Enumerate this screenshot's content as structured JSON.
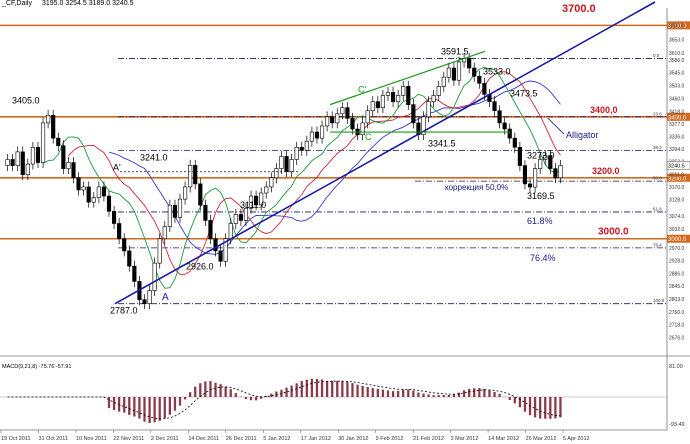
{
  "header": {
    "title": "_CF,Daily",
    "ohlc": "3195.0 3254.5 3189.0 3240.5"
  },
  "chart_data": {
    "type": "candlestick",
    "title": "_CF,Daily",
    "ylim": [
      2635,
      3757
    ],
    "y_ticks": [
      3700.0,
      3653.0,
      3610,
      3586.0,
      3545,
      3503,
      3460,
      3418,
      3377,
      3336,
      3294,
      3253,
      3211,
      3170,
      3128,
      3074.0,
      3032,
      2970.0,
      2928,
      2886,
      2845,
      2803,
      2760.0,
      2718,
      2676
    ],
    "x_ticks": [
      "19 Oct 2011",
      "31 Oct 2011",
      "10 Nov 2011",
      "22 Nov 2011",
      "2 Dec 2011",
      "14 Dec 2011",
      "26 Dec 2011",
      "5 Jan 2012",
      "17 Jan 2012",
      "30 Jan 2012",
      "9 Feb 2012",
      "21 Feb 2012",
      "2 Mar 2012",
      "14 Mar 2012",
      "26 Mar 2012",
      "5 Apr 2012"
    ],
    "candles_close": [
      3260,
      3240,
      3285,
      3210,
      3245,
      3300,
      3250,
      3380,
      3405,
      3330,
      3305,
      3230,
      3250,
      3200,
      3160,
      3170,
      3120,
      3135,
      3170,
      3140,
      3090,
      3050,
      3000,
      2960,
      2910,
      2860,
      2800,
      2787,
      2830,
      2920,
      3000,
      3040,
      3110,
      3070,
      3130,
      3170,
      3241,
      3180,
      3110,
      3060,
      3000,
      2960,
      2926,
      3000,
      3050,
      3080,
      3060,
      3100,
      3140,
      3111,
      3150,
      3170,
      3200,
      3230,
      3270,
      3220,
      3260,
      3300,
      3290,
      3320,
      3350,
      3330,
      3370,
      3400,
      3380,
      3410,
      3430,
      3395,
      3360,
      3341,
      3380,
      3420,
      3450,
      3430,
      3470,
      3480,
      3450,
      3470,
      3500,
      3440,
      3380,
      3341.5,
      3400,
      3450,
      3470,
      3500,
      3530,
      3560,
      3520,
      3580,
      3591.5,
      3560,
      3533,
      3510,
      3473.5,
      3450,
      3420,
      3380,
      3360,
      3330,
      3300,
      3240,
      3180,
      3169.5,
      3230,
      3260,
      3273,
      3230,
      3200,
      3240.5
    ],
    "levels": [
      {
        "label": "3700.0",
        "value": 3700.0,
        "color": "#d2691e"
      },
      {
        "label": "3400,0",
        "value": 3400.0,
        "color": "#d2691e"
      },
      {
        "label": "3200.0",
        "value": 3200.0,
        "color": "#d2691e"
      },
      {
        "label": "3000.0",
        "value": 3000.0,
        "color": "#d2691e"
      }
    ],
    "fib_levels": [
      {
        "name": "0.0",
        "value": 3591.5
      },
      {
        "name": "23.6",
        "value": 3400.0
      },
      {
        "name": "38.2",
        "value": 3290.0
      },
      {
        "name": "50.0",
        "value": 3189.0
      },
      {
        "name": "61.8",
        "value": 3088.0
      },
      {
        "name": "76.4",
        "value": 2970.0
      },
      {
        "name": "100.0",
        "value": 2787.0
      }
    ],
    "fib_texts": [
      "коррекция 50,0%",
      "61.8%",
      "76.4%"
    ],
    "annotations": [
      "3405.0",
      "3241.0",
      "3111.0",
      "2926.0",
      "2787.0",
      "3591.5",
      "3533.0",
      "3473.5",
      "3341.5",
      "3273.0",
      "3169.5",
      "A",
      "A'",
      "C",
      "C'",
      "Alligator"
    ],
    "macd": {
      "label": "MACD(9,21,8) -75.76 -57.91",
      "top_tick": "81.00",
      "bottom_tick": "-93.49"
    },
    "colors": {
      "support": "#d2691e",
      "trendline": "#1a1aa6",
      "channel": "#1a9a1a",
      "jaw": "#3a3ac8",
      "teeth": "#c8283c",
      "lips": "#1e9a3c",
      "macd": "#8b3a4a"
    }
  }
}
